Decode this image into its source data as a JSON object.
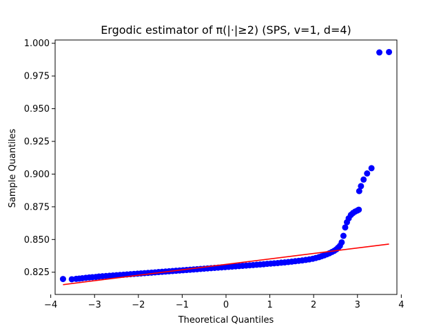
{
  "chart_data": {
    "type": "scatter",
    "title": "Ergodic estimator of π(|·|≥2) (SPS, v=1, d=4)",
    "xlabel": "Theoretical Quantiles",
    "ylabel": "Sample Quantiles",
    "xlim": [
      -3.9,
      3.9
    ],
    "ylim": [
      0.808,
      1.0025
    ],
    "x_ticks": [
      -4,
      -3,
      -2,
      -1,
      0,
      1,
      2,
      3,
      4
    ],
    "x_tick_labels": [
      "−4",
      "−3",
      "−2",
      "−1",
      "0",
      "1",
      "2",
      "3",
      "4"
    ],
    "y_ticks": [
      0.825,
      0.85,
      0.875,
      0.9,
      0.925,
      0.95,
      0.975,
      1.0
    ],
    "y_tick_labels": [
      "0.825",
      "0.850",
      "0.875",
      "0.900",
      "0.925",
      "0.950",
      "0.975",
      "1.000"
    ],
    "colors": {
      "points": "#0000ff",
      "reference_line": "#ff0000",
      "axes": "#000000"
    },
    "reference_line": {
      "x": [
        -3.72,
        3.72
      ],
      "y": [
        0.8155,
        0.8465
      ]
    },
    "series": [
      {
        "name": "sample quantiles",
        "x": [
          -3.72,
          -3.52,
          -3.42,
          -3.35,
          -3.28,
          -3.2,
          -3.12,
          -3.05,
          -2.97,
          -2.9,
          -2.82,
          -2.74,
          -2.66,
          -2.58,
          -2.5,
          -2.42,
          -2.34,
          -2.26,
          -2.18,
          -2.1,
          -2.02,
          -1.94,
          -1.86,
          -1.78,
          -1.7,
          -1.62,
          -1.54,
          -1.46,
          -1.38,
          -1.3,
          -1.22,
          -1.14,
          -1.06,
          -0.98,
          -0.9,
          -0.82,
          -0.74,
          -0.66,
          -0.58,
          -0.5,
          -0.42,
          -0.34,
          -0.26,
          -0.18,
          -0.1,
          -0.02,
          0.06,
          0.14,
          0.22,
          0.3,
          0.38,
          0.46,
          0.54,
          0.62,
          0.7,
          0.78,
          0.86,
          0.94,
          1.02,
          1.1,
          1.18,
          1.26,
          1.34,
          1.42,
          1.5,
          1.58,
          1.66,
          1.74,
          1.82,
          1.9,
          1.98,
          2.05,
          2.12,
          2.18,
          2.24,
          2.3,
          2.36,
          2.42,
          2.47,
          2.52,
          2.56,
          2.6,
          2.64,
          2.68,
          2.72,
          2.76,
          2.8,
          2.85,
          2.9,
          2.95,
          3.0,
          3.03,
          3.04,
          3.08,
          3.14,
          3.22,
          3.32,
          3.5,
          3.72
        ],
        "y": [
          0.8198,
          0.8196,
          0.8199,
          0.8201,
          0.8204,
          0.8207,
          0.821,
          0.8212,
          0.8214,
          0.8217,
          0.8219,
          0.8221,
          0.8223,
          0.8225,
          0.8227,
          0.8229,
          0.8231,
          0.8233,
          0.8235,
          0.8237,
          0.8239,
          0.8241,
          0.8243,
          0.8245,
          0.8247,
          0.8249,
          0.8251,
          0.8253,
          0.8255,
          0.8257,
          0.8259,
          0.8261,
          0.8263,
          0.8265,
          0.8267,
          0.8269,
          0.8271,
          0.8273,
          0.8275,
          0.8277,
          0.8279,
          0.8281,
          0.8283,
          0.8285,
          0.8287,
          0.8289,
          0.8291,
          0.8293,
          0.8295,
          0.8297,
          0.8299,
          0.8301,
          0.8303,
          0.8305,
          0.8307,
          0.8309,
          0.8311,
          0.8314,
          0.8316,
          0.8318,
          0.832,
          0.8323,
          0.8325,
          0.8328,
          0.8331,
          0.8334,
          0.8337,
          0.834,
          0.8344,
          0.8348,
          0.8353,
          0.8359,
          0.8365,
          0.8372,
          0.8379,
          0.8387,
          0.8395,
          0.8405,
          0.8414,
          0.8425,
          0.8438,
          0.8452,
          0.8478,
          0.8528,
          0.8592,
          0.8632,
          0.8662,
          0.8688,
          0.8703,
          0.8714,
          0.8722,
          0.8728,
          0.887,
          0.8908,
          0.8958,
          0.9005,
          0.9045,
          0.993,
          0.9933
        ]
      }
    ]
  }
}
